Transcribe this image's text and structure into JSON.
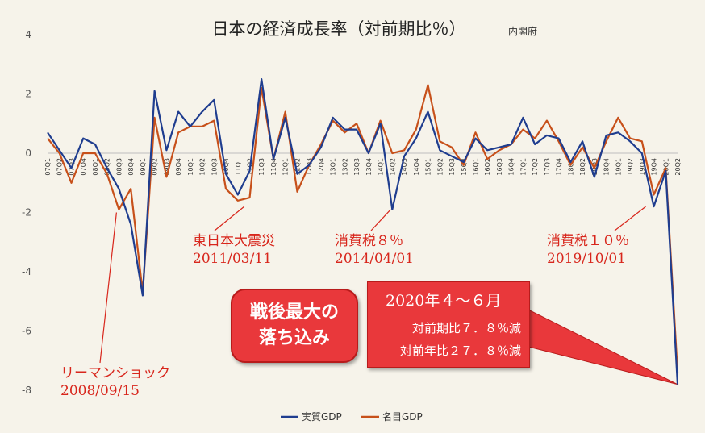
{
  "chart_data": {
    "type": "line",
    "title": "日本の経済成長率（対前期比％）",
    "source": "内閣府",
    "ylim": [
      -8,
      4
    ],
    "yticks": [
      "4",
      "2",
      "0",
      "-2",
      "-4",
      "-6",
      "-8"
    ],
    "grid": false,
    "legend_position": "bottom",
    "categories": [
      "07Q1",
      "07Q2",
      "07Q3",
      "07Q4",
      "08Q1",
      "08Q2",
      "08Q3",
      "08Q4",
      "09Q1",
      "09Q2",
      "09Q3",
      "09Q4",
      "10Q1",
      "10Q2",
      "10Q3",
      "10Q4",
      "11Q1",
      "11Q2",
      "11Q3",
      "11Q4",
      "12Q1",
      "12Q2",
      "12Q3",
      "12Q4",
      "13Q1",
      "13Q2",
      "13Q3",
      "13Q4",
      "14Q1",
      "14Q2",
      "14Q3",
      "14Q4",
      "15Q1",
      "15Q2",
      "15Q3",
      "15Q4",
      "16Q1",
      "16Q2",
      "16Q3",
      "16Q4",
      "17Q1",
      "17Q2",
      "17Q3",
      "17Q4",
      "18Q1",
      "18Q2",
      "18Q3",
      "18Q4",
      "19Q1",
      "19Q2",
      "19Q3",
      "19Q4",
      "20Q1",
      "20Q2"
    ],
    "series": [
      {
        "name": "実質GDP",
        "color": "#1f3d8f",
        "values": [
          0.7,
          0.1,
          -0.5,
          0.5,
          0.3,
          -0.5,
          -1.2,
          -2.4,
          -4.8,
          2.1,
          0.1,
          1.4,
          0.9,
          1.4,
          1.8,
          -0.7,
          -1.4,
          -0.6,
          2.5,
          -0.2,
          1.2,
          -0.7,
          -0.4,
          0.2,
          1.2,
          0.8,
          0.8,
          0.0,
          1.0,
          -1.9,
          -0.1,
          0.5,
          1.4,
          0.1,
          -0.1,
          -0.3,
          0.5,
          0.1,
          0.2,
          0.3,
          1.2,
          0.3,
          0.6,
          0.5,
          -0.3,
          0.4,
          -0.8,
          0.6,
          0.7,
          0.4,
          0.0,
          -1.8,
          -0.6,
          -7.8
        ]
      },
      {
        "name": "名目GDP",
        "color": "#c7501a",
        "values": [
          0.5,
          0.0,
          -1.0,
          0.0,
          0.0,
          -0.7,
          -1.9,
          -1.2,
          -4.7,
          1.2,
          -0.8,
          0.7,
          0.9,
          0.9,
          1.1,
          -1.2,
          -1.6,
          -1.5,
          2.2,
          -0.2,
          1.4,
          -1.3,
          -0.4,
          0.3,
          1.1,
          0.7,
          1.0,
          0.0,
          1.1,
          0.0,
          0.1,
          0.8,
          2.3,
          0.4,
          0.2,
          -0.4,
          0.7,
          -0.2,
          0.1,
          0.3,
          0.8,
          0.5,
          1.1,
          0.4,
          -0.4,
          0.2,
          -0.5,
          0.4,
          1.2,
          0.5,
          0.4,
          -1.4,
          -0.5,
          -7.4
        ]
      }
    ]
  },
  "annotations": {
    "lehman": {
      "line1": "リーマンショック",
      "line2": "2008/09/15"
    },
    "earthquake": {
      "line1": "東日本大震災",
      "line2": "2011/03/11"
    },
    "tax8": {
      "line1": "消費税８％",
      "line2": "2014/04/01"
    },
    "tax10": {
      "line1": "消費税１０％",
      "line2": "2019/10/01"
    },
    "highlight": {
      "line1": "戦後最大の",
      "line2": "落ち込み"
    },
    "callout": {
      "title": "2020年４～６月",
      "line1": "対前期比７．８％減",
      "line2": "対前年比２７．８％減"
    }
  }
}
